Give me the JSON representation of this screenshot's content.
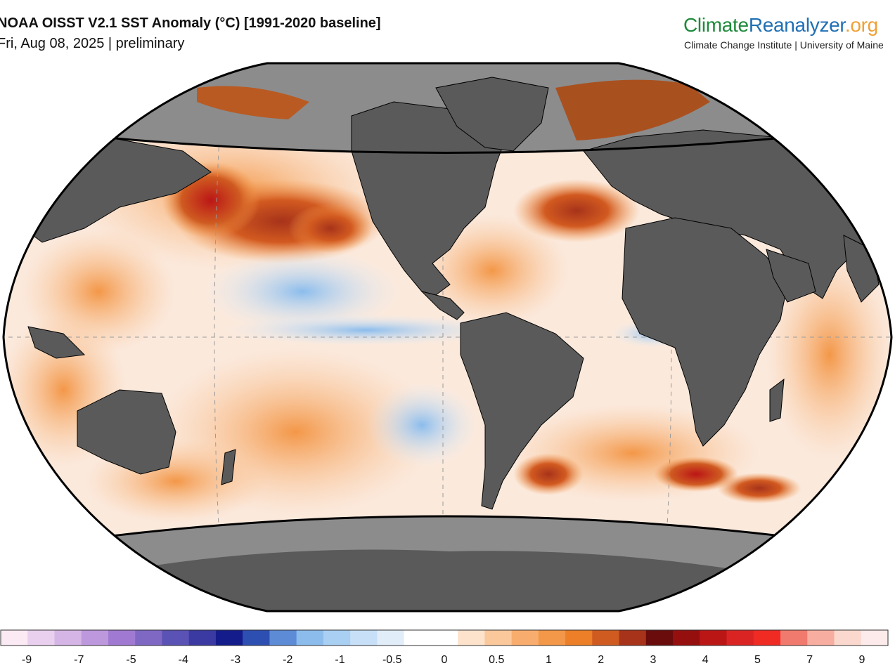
{
  "header": {
    "title": "NOAA OISST V2.1 SST Anomaly (°C) [1991-2020 baseline]",
    "subtitle": "Fri, Aug 08, 2025 | preliminary"
  },
  "brand": {
    "part1": "Climate",
    "part2": "Reanalyzer",
    "part3": ".org",
    "subtitle": "Climate Change Institute | University of Maine",
    "colors": {
      "part1": "#1f8a3b",
      "part2": "#1f6fb5",
      "part3": "#f0a035"
    }
  },
  "map": {
    "projection": "robinson-like",
    "colors": {
      "land": "#5a5a5a",
      "ice_shade": "#8c8c8c",
      "border": "#000000",
      "gridline": "#9a9a9a"
    }
  },
  "colorbar": {
    "tick_labels": [
      "-9",
      "-7",
      "-5",
      "-4",
      "-3",
      "-2",
      "-1",
      "-0.5",
      "0",
      "0.5",
      "1",
      "2",
      "3",
      "4",
      "5",
      "7",
      "9"
    ],
    "colors": [
      "#fbeaf3",
      "#e9d0ee",
      "#d5b5e6",
      "#bd98dd",
      "#a07ad2",
      "#7e68c4",
      "#5b52b5",
      "#3a3aa2",
      "#141c8c",
      "#2e4fb2",
      "#5d8bd6",
      "#8bbcec",
      "#a9cff2",
      "#c7e0f7",
      "#e1eefa",
      "#ffffff",
      "#ffffff",
      "#fde3cc",
      "#fbc89c",
      "#f8ad6e",
      "#f39748",
      "#ec7f27",
      "#cf5b21",
      "#a7331a",
      "#6a0c0c",
      "#960f0f",
      "#bb1616",
      "#da2424",
      "#ef2b24",
      "#f17a6e",
      "#f7aea0",
      "#fbd8cd",
      "#fdeaea"
    ]
  }
}
